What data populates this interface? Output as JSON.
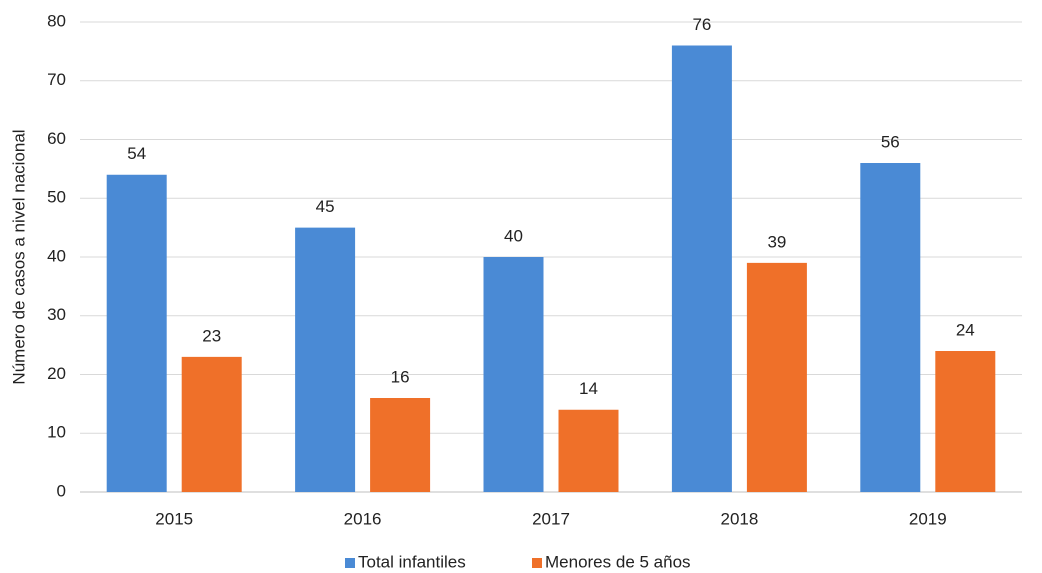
{
  "chart_data": {
    "type": "bar",
    "y_label": "Número de casos a nivel nacional",
    "categories": [
      "2015",
      "2016",
      "2017",
      "2018",
      "2019"
    ],
    "series": [
      {
        "name": "Total infantiles",
        "color": "#4a8ad5",
        "values": [
          54,
          45,
          40,
          76,
          56
        ]
      },
      {
        "name": "Menores de 5 años",
        "color": "#ef7029",
        "values": [
          23,
          16,
          14,
          39,
          24
        ]
      }
    ],
    "ylim": [
      0,
      80
    ],
    "yticks": [
      0,
      10,
      20,
      30,
      40,
      50,
      60,
      70,
      80
    ],
    "grid": true,
    "legend": "bottom"
  }
}
